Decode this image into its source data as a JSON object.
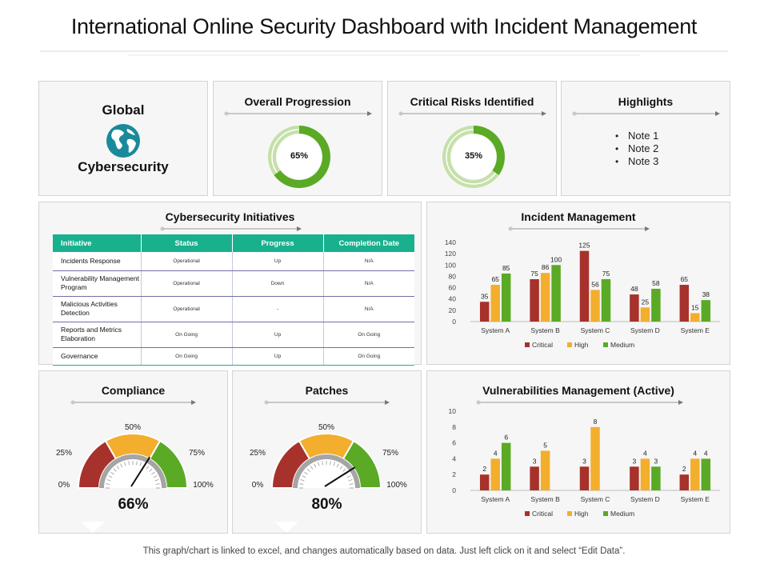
{
  "title": "International Online Security Dashboard with Incident Management",
  "footnote": "This graph/chart is linked to excel, and changes automatically based on data. Just left click on it and select “Edit Data”.",
  "global": {
    "line1": "Global",
    "line2": "Cybersecurity",
    "icon": "globe-icon"
  },
  "overall_progression": {
    "title": "Overall Progression",
    "value": 65,
    "label": "65%"
  },
  "critical_risks": {
    "title": "Critical Risks Identified",
    "value": 35,
    "label": "35%"
  },
  "highlights": {
    "title": "Highlights",
    "items": [
      "Note 1",
      "Note 2",
      "Note 3"
    ]
  },
  "initiatives": {
    "title": "Cybersecurity Initiatives",
    "headers": [
      "Initiative",
      "Status",
      "Progress",
      "Completion Date"
    ],
    "rows": [
      [
        "Incidents Response",
        "Operational",
        "Up",
        "N/A"
      ],
      [
        "Vulnerability Management Program",
        "Operational",
        "Down",
        "N/A"
      ],
      [
        "Malicious Activities Detection",
        "Operational",
        "-",
        "N/A"
      ],
      [
        "Reports and Metrics Elaboration",
        "On Going",
        "Up",
        "On Going"
      ],
      [
        "Governance",
        "On Going",
        "Up",
        "On Going"
      ]
    ]
  },
  "compliance": {
    "title": "Compliance",
    "value": 66,
    "value_label": "66%",
    "ticks": [
      "0%",
      "25%",
      "50%",
      "75%",
      "100%"
    ]
  },
  "patches": {
    "title": "Patches",
    "value": 80,
    "value_label": "80%",
    "ticks": [
      "0%",
      "25%",
      "50%",
      "75%",
      "100%"
    ]
  },
  "colors": {
    "critical": "#a7322b",
    "high": "#f3ae2d",
    "medium": "#5aaa25",
    "teal": "#19b08e",
    "donut": "#5aaa25",
    "donut_light": "#c5e0a8"
  },
  "chart_data": [
    {
      "type": "bar",
      "title": "Incident Management",
      "categories": [
        "System A",
        "System B",
        "System C",
        "System D",
        "System E"
      ],
      "series": [
        {
          "name": "Critical",
          "values": [
            35,
            75,
            125,
            48,
            65
          ]
        },
        {
          "name": "High",
          "values": [
            65,
            86,
            56,
            25,
            15
          ]
        },
        {
          "name": "Medium",
          "values": [
            85,
            100,
            75,
            58,
            38
          ]
        }
      ],
      "ylim": [
        0,
        140
      ],
      "yticks": [
        "0",
        "20",
        "40",
        "60",
        "80",
        "100",
        "120",
        "140"
      ],
      "legend": "bottom"
    },
    {
      "type": "bar",
      "title": "Vulnerabilities Management (Active)",
      "categories": [
        "System A",
        "System B",
        "System C",
        "System D",
        "System E"
      ],
      "series": [
        {
          "name": "Critical",
          "values": [
            2,
            3,
            3,
            3,
            2
          ]
        },
        {
          "name": "High",
          "values": [
            4,
            5,
            8,
            4,
            4
          ]
        },
        {
          "name": "Medium",
          "values": [
            6,
            null,
            null,
            3,
            4
          ]
        }
      ],
      "ylim": [
        0,
        10
      ],
      "yticks": [
        "0",
        "2",
        "4",
        "6",
        "8",
        "10"
      ],
      "legend": "bottom"
    }
  ]
}
